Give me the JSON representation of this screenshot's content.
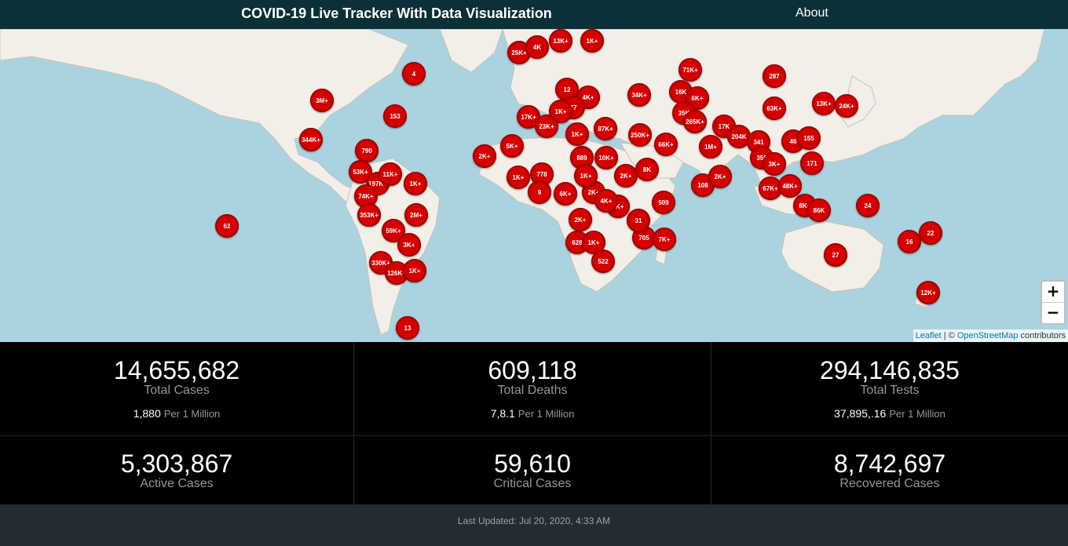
{
  "header": {
    "title": "COVID-19 Live Tracker With Data Visualization",
    "about_label": "About"
  },
  "map": {
    "zoom_in": "+",
    "zoom_out": "−",
    "attribution": {
      "leaflet": "Leaflet",
      "sep": " | © ",
      "osm": "OpenStreetMap",
      "suffix": " contributors"
    },
    "markers": [
      "4",
      "3M+",
      "153",
      "344K+",
      "790",
      "53K+",
      "197K+",
      "11K+",
      "1K+",
      "74K+",
      "353K+",
      "2M+",
      "59K+",
      "3K+",
      "330K+",
      "126K+",
      "1K+",
      "62",
      "13",
      "25K+",
      "13K+",
      "1K+",
      "4K",
      "12",
      "4K+",
      "77",
      "1K+",
      "17K+",
      "23K+",
      "1K+",
      "87K+",
      "34K+",
      "71K+",
      "287",
      "16K",
      "6K+",
      "63K+",
      "13K+",
      "24K+",
      "35K",
      "265K+",
      "250K+",
      "66K+",
      "17K",
      "204K",
      "341",
      "46",
      "155",
      "1M+",
      "5K+",
      "2K+",
      "1K+",
      "778",
      "889",
      "10K+",
      "9",
      "6K+",
      "2K+",
      "8K",
      "3K+",
      "509",
      "108",
      "2K+",
      "2K+",
      "705",
      "7K+",
      "628",
      "1K+",
      "522",
      "359",
      "3K+",
      "171",
      "67K+",
      "48K+",
      "8K+",
      "86K",
      "24",
      "16",
      "22",
      "27",
      "12K+",
      "1K+",
      "4K+",
      "31",
      "2K+",
      "3K"
    ],
    "colors": {
      "ocean": "#aad3df",
      "land": "#f2efe9",
      "marker": "#d40000"
    }
  },
  "stats": {
    "total_cases": {
      "value": "14,655,682",
      "label": "Total Cases",
      "per_million": "1,880",
      "unit": "Per 1 Million"
    },
    "total_deaths": {
      "value": "609,118",
      "label": "Total Deaths",
      "per_million": "7,8.1",
      "unit": "Per 1 Million"
    },
    "total_tests": {
      "value": "294,146,835",
      "label": "Total Tests",
      "per_million": "37,895,.16",
      "unit": "Per 1 Million"
    },
    "active_cases": {
      "value": "5,303,867",
      "label": "Active Cases"
    },
    "critical_cases": {
      "value": "59,610",
      "label": "Critical Cases"
    },
    "recovered_cases": {
      "value": "8,742,697",
      "label": "Recovered Cases"
    }
  },
  "footer": {
    "last_updated": "Last Updated: Jul 20, 2020, 4:33 AM"
  }
}
